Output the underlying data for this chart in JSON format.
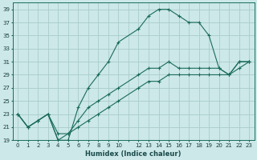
{
  "xlabel": "Humidex (Indice chaleur)",
  "bg_color": "#cce8e8",
  "grid_color": "#aacccc",
  "line_color": "#1a6b5a",
  "xlim": [
    -0.5,
    23.5
  ],
  "ylim": [
    19,
    40
  ],
  "yticks": [
    19,
    21,
    23,
    25,
    27,
    29,
    31,
    33,
    35,
    37,
    39
  ],
  "xtick_positions": [
    0,
    1,
    2,
    3,
    4,
    5,
    6,
    7,
    8,
    9,
    10,
    11,
    12,
    13,
    14,
    15,
    16,
    17,
    18,
    19,
    20,
    21,
    22,
    23
  ],
  "xtick_labels": [
    "0",
    "1",
    "2",
    "3",
    "4",
    "5",
    "6",
    "7",
    "8",
    "9",
    "10",
    "",
    "12",
    "13",
    "14",
    "15",
    "16",
    "17",
    "18",
    "19",
    "20",
    "21",
    "22",
    "23"
  ],
  "series1_x": [
    0,
    1,
    2,
    3,
    4,
    5,
    6,
    7,
    8,
    9,
    10,
    12,
    13,
    14,
    15,
    16,
    17,
    18,
    19,
    20,
    21,
    22,
    23
  ],
  "series1_y": [
    23,
    21,
    22,
    23,
    19,
    19,
    24,
    27,
    29,
    31,
    34,
    36,
    38,
    39,
    39,
    38,
    37,
    37,
    35,
    30,
    29,
    30,
    31
  ],
  "series2_x": [
    0,
    1,
    2,
    3,
    4,
    5,
    6,
    7,
    8,
    9,
    10,
    12,
    13,
    14,
    15,
    16,
    17,
    18,
    19,
    20,
    21,
    22,
    23
  ],
  "series2_y": [
    23,
    21,
    22,
    23,
    20,
    20,
    22,
    24,
    25,
    26,
    27,
    29,
    30,
    30,
    31,
    30,
    30,
    30,
    30,
    30,
    29,
    31,
    31
  ],
  "series3_x": [
    0,
    1,
    2,
    3,
    4,
    5,
    6,
    7,
    8,
    9,
    10,
    12,
    13,
    14,
    15,
    16,
    17,
    18,
    19,
    20,
    21,
    22,
    23
  ],
  "series3_y": [
    23,
    21,
    22,
    23,
    19,
    20,
    21,
    22,
    23,
    24,
    25,
    27,
    28,
    28,
    29,
    29,
    29,
    29,
    29,
    29,
    29,
    31,
    31
  ],
  "tick_fontsize": 5.0,
  "xlabel_fontsize": 6.0
}
